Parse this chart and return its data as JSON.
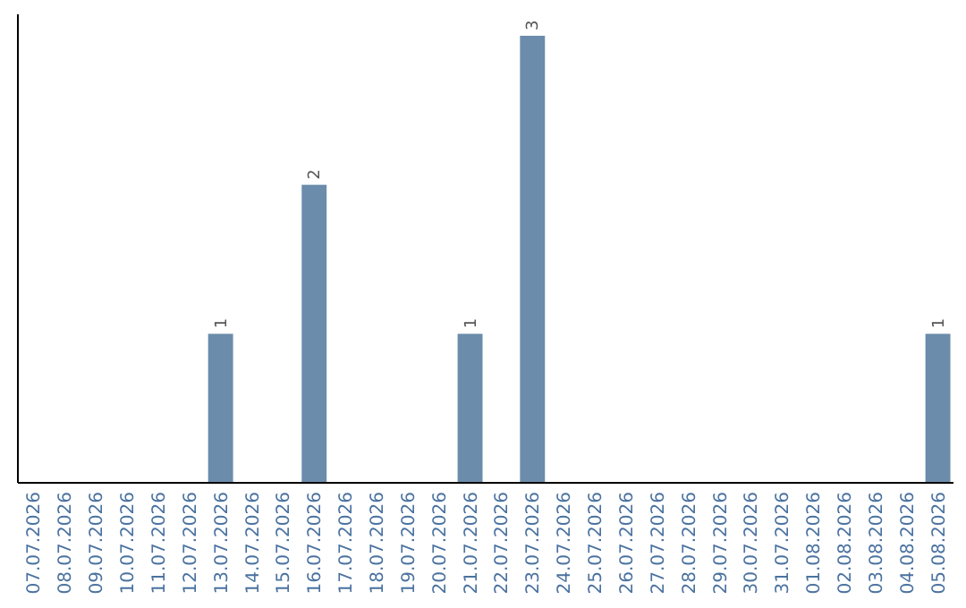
{
  "chart_data": {
    "type": "bar",
    "categories": [
      "07.07.2026",
      "08.07.2026",
      "09.07.2026",
      "10.07.2026",
      "11.07.2026",
      "12.07.2026",
      "13.07.2026",
      "14.07.2026",
      "15.07.2026",
      "16.07.2026",
      "17.07.2026",
      "18.07.2026",
      "19.07.2026",
      "20.07.2026",
      "21.07.2026",
      "22.07.2026",
      "23.07.2026",
      "24.07.2026",
      "25.07.2026",
      "26.07.2026",
      "27.07.2026",
      "28.07.2026",
      "29.07.2026",
      "30.07.2026",
      "31.07.2026",
      "01.08.2026",
      "02.08.2026",
      "03.08.2026",
      "04.08.2026",
      "05.08.2026"
    ],
    "values": [
      0,
      0,
      0,
      0,
      0,
      0,
      1,
      0,
      0,
      2,
      0,
      0,
      0,
      0,
      1,
      0,
      3,
      0,
      0,
      0,
      0,
      0,
      0,
      0,
      0,
      0,
      0,
      0,
      0,
      1
    ],
    "value_labels": [
      null,
      null,
      null,
      null,
      null,
      null,
      "1",
      null,
      null,
      "2",
      null,
      null,
      null,
      null,
      "1",
      null,
      "3",
      null,
      null,
      null,
      null,
      null,
      null,
      null,
      null,
      null,
      null,
      null,
      null,
      "1"
    ],
    "color": "#6b8cab"
  }
}
